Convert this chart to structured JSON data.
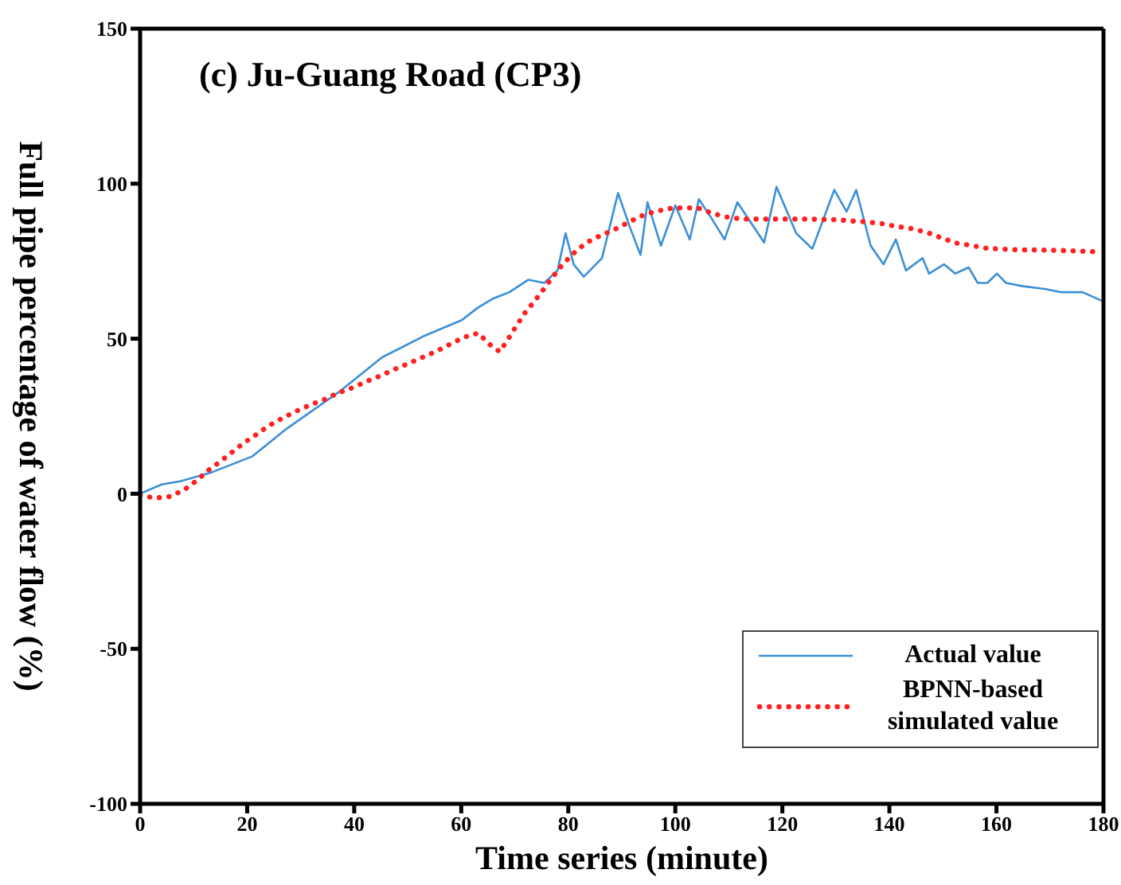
{
  "chart_data": {
    "type": "line",
    "xlabel": "Time series (minute)",
    "ylabel": "Full pipe percentage of water flow (%)",
    "annotations": [
      "(c) Ju-Guang Road (CP3)"
    ],
    "xlim": [
      0,
      180
    ],
    "xticks": [
      0,
      20,
      40,
      60,
      80,
      100,
      120,
      140,
      160,
      180
    ],
    "ylim": [
      -100,
      150
    ],
    "yticks": [
      -100,
      -50,
      0,
      50,
      100,
      150
    ],
    "grid": false,
    "legend": "bottom right",
    "series": [
      {
        "name": "Actual value",
        "color": "#3b8fd6",
        "line_style": "solid",
        "x": [
          0,
          4,
          7.5,
          13.5,
          20.9,
          27.4,
          37.3,
          45.2,
          53.2,
          60.1,
          63.1,
          66,
          69,
          72.5,
          75.5,
          78,
          79.5,
          81,
          82.9,
          86.3,
          89.3,
          91.5,
          93.5,
          94.8,
          97.3,
          100,
          102.7,
          104.4,
          106.7,
          109.2,
          111.6,
          116.6,
          118.9,
          122.6,
          125.6,
          129.7,
          132,
          133.8,
          136.5,
          138.9,
          141.2,
          143.1,
          146.2,
          147.4,
          150.2,
          152.3,
          154.8,
          156.5,
          158.3,
          160.1,
          161.8,
          164.7,
          169.2,
          172.2,
          176.1,
          180
        ],
        "values": [
          0,
          3,
          4,
          7,
          12,
          21,
          33,
          44,
          51,
          56,
          60,
          63,
          65,
          69,
          68,
          72,
          84,
          74,
          70,
          76,
          97,
          86,
          77,
          94,
          80,
          93,
          82,
          95,
          89,
          82,
          94,
          81,
          99,
          84,
          79,
          98,
          91,
          98,
          80,
          74,
          82,
          72,
          76,
          71,
          74,
          71,
          73,
          68,
          68,
          71,
          68,
          67,
          66,
          65,
          65,
          62
        ]
      },
      {
        "name": "BPNN-based simulated value",
        "color": "#ff2020",
        "line_style": "dotted",
        "x": [
          0,
          2.8,
          5.5,
          8.2,
          10.4,
          12.6,
          14.9,
          17.1,
          19.3,
          21.8,
          24,
          26.5,
          29,
          31.7,
          34.4,
          37,
          39.7,
          42.4,
          45,
          47.6,
          50.3,
          52.9,
          55.4,
          58,
          60.5,
          63.2,
          65.2,
          67.2,
          68.8,
          70.3,
          72,
          73.7,
          75.5,
          77.2,
          78.9,
          80.9,
          83.2,
          85.7,
          88.4,
          91,
          93.5,
          96.1,
          99,
          101.8,
          104.5,
          107.2,
          110.2,
          112.9,
          118.6,
          124.3,
          130,
          132.8,
          135.7,
          138.6,
          141.4,
          144.2,
          147,
          149.6,
          152.3,
          155.3,
          158,
          160.9,
          163.6,
          169.4,
          175.2,
          178
        ],
        "values": [
          -0.5,
          -1.4,
          -0.9,
          1.2,
          4,
          7.4,
          10.3,
          13.3,
          16.3,
          19.2,
          21.9,
          24.3,
          26.5,
          28.6,
          30.4,
          32.5,
          34.2,
          36.3,
          38.1,
          40.2,
          42.1,
          44.1,
          46,
          48.3,
          50.5,
          51.8,
          48.3,
          45.8,
          50,
          54.2,
          58.6,
          62.1,
          66.2,
          70.2,
          73.9,
          77.4,
          80.8,
          83,
          85,
          87.3,
          89.5,
          91,
          92,
          92.3,
          92,
          90.3,
          89,
          88.6,
          88.6,
          88.6,
          88.4,
          88,
          87.7,
          87.1,
          86.2,
          85.5,
          84.3,
          82.6,
          80.9,
          80.1,
          79.2,
          78.9,
          78.7,
          78.6,
          78.3,
          78.1
        ]
      }
    ]
  }
}
